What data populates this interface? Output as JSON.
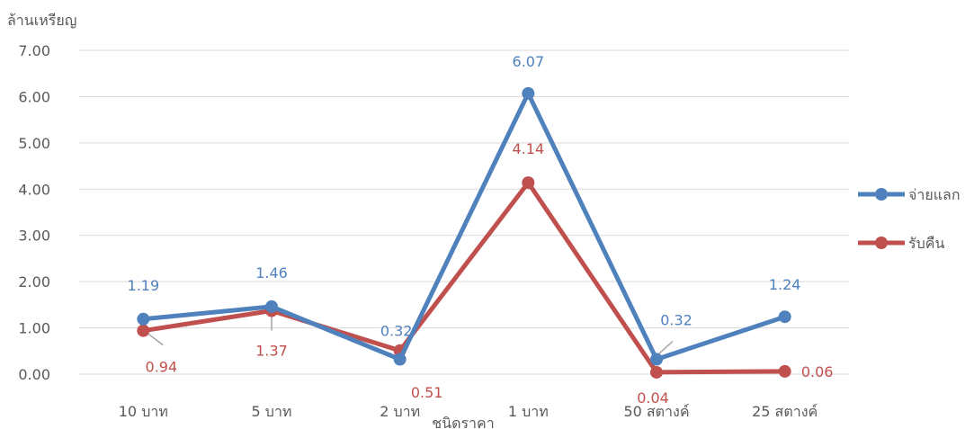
{
  "chart_data": {
    "type": "line",
    "ylabel": "ล้านเหรียญ",
    "xlabel": "ชนิดราคา",
    "categories": [
      "10 บาท",
      "5 บาท",
      "2 บาท",
      "1 บาท",
      "50 สตางค์",
      "25 สตางค์"
    ],
    "ylim": [
      0,
      7
    ],
    "yticks": [
      "0.00",
      "1.00",
      "2.00",
      "3.00",
      "4.00",
      "5.00",
      "6.00",
      "7.00"
    ],
    "grid": true,
    "legend_position": "right",
    "series": [
      {
        "name": "จ่ายแลก",
        "color": "#4F81BD",
        "values": [
          1.19,
          1.46,
          0.32,
          6.07,
          0.32,
          1.24
        ],
        "labels": [
          "1.19",
          "1.46",
          "0.32",
          "6.07",
          "0.32",
          "1.24"
        ]
      },
      {
        "name": "รับคืน",
        "color": "#C0504D",
        "values": [
          0.94,
          1.37,
          0.51,
          4.14,
          0.04,
          0.06
        ],
        "labels": [
          "0.94",
          "1.37",
          "0.51",
          "4.14",
          "0.04",
          "0.06"
        ]
      }
    ]
  }
}
